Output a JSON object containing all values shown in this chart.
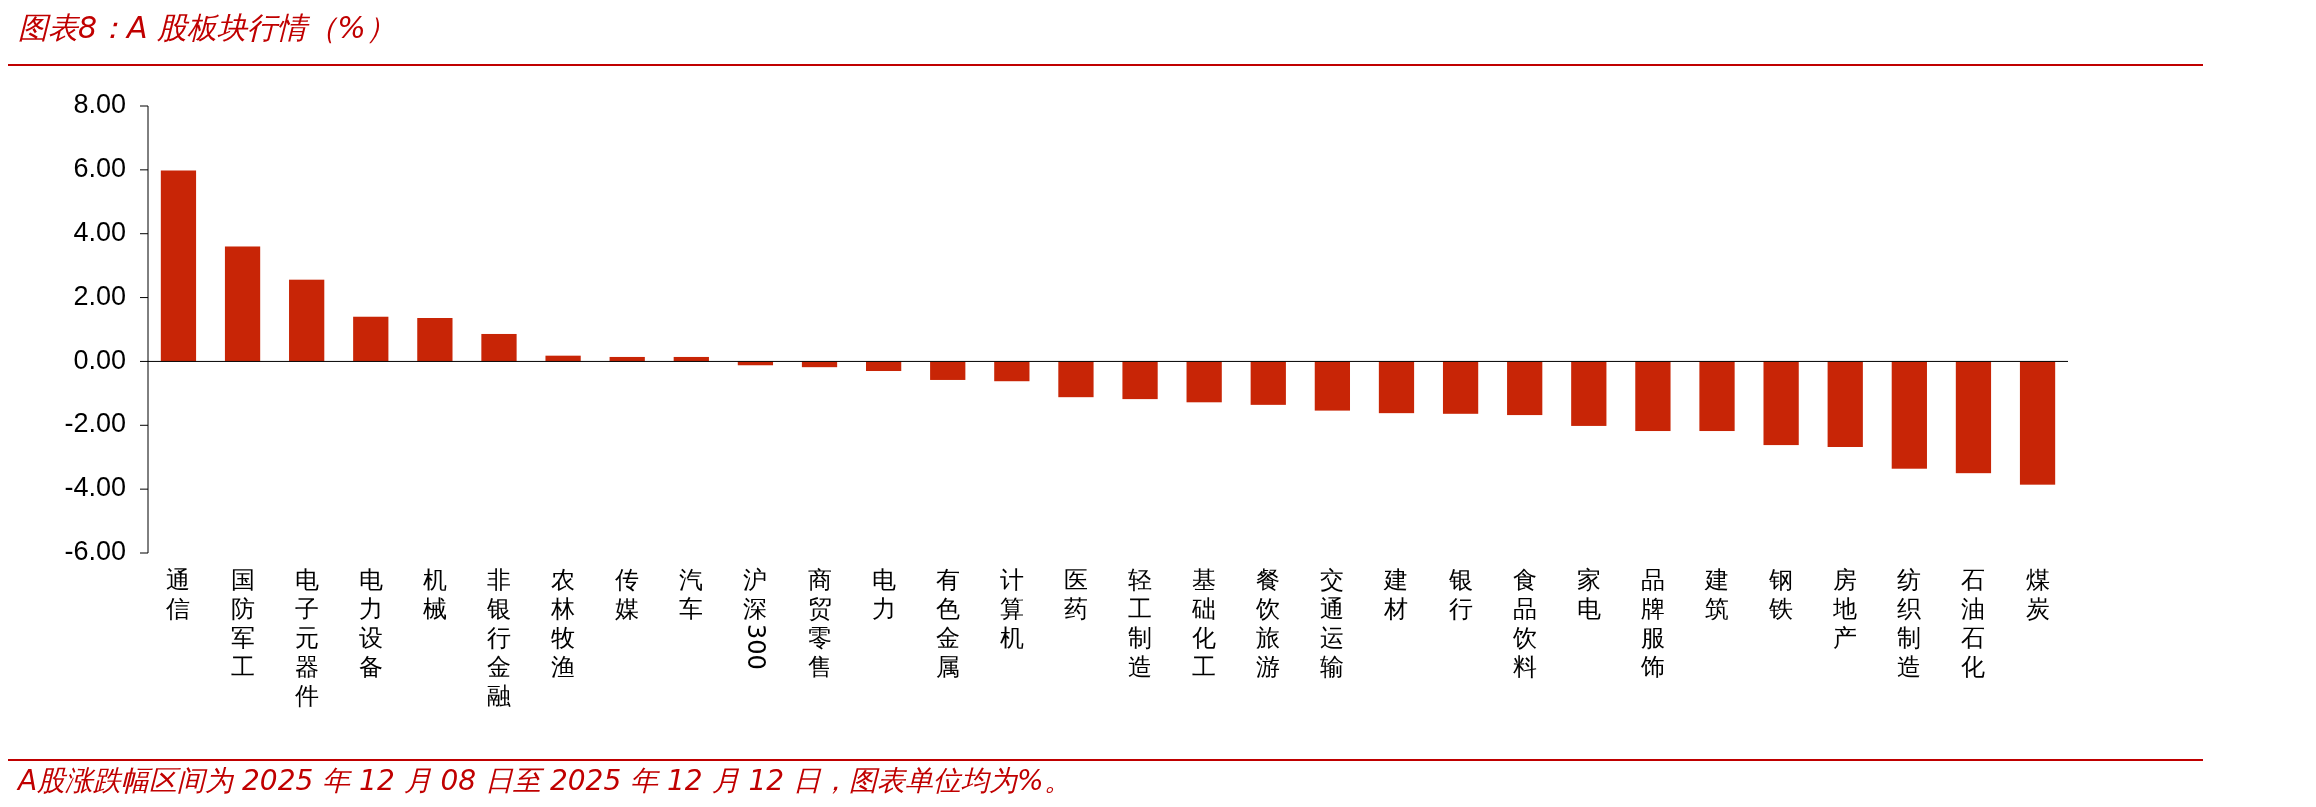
{
  "chart_data": {
    "type": "bar",
    "title": "图表8：A 股板块行情（%）",
    "categories": [
      "通信",
      "国防军工",
      "电子元器件",
      "电力设备",
      "机械",
      "非银行金融",
      "农林牧渔",
      "传媒",
      "汽车",
      "沪深300",
      "商贸零售",
      "电力",
      "有色金属",
      "计算机",
      "医药",
      "轻工制造",
      "基础化工",
      "餐饮旅游",
      "交通运输",
      "建材",
      "银行",
      "食品饮料",
      "家电",
      "品牌服饰",
      "建筑",
      "钢铁",
      "房地产",
      "纺织制造",
      "石油石化",
      "煤炭"
    ],
    "values": [
      5.98,
      3.6,
      2.56,
      1.4,
      1.36,
      0.86,
      0.18,
      0.14,
      0.14,
      -0.12,
      -0.18,
      -0.3,
      -0.58,
      -0.62,
      -1.12,
      -1.18,
      -1.28,
      -1.36,
      -1.54,
      -1.62,
      -1.64,
      -1.68,
      -2.02,
      -2.18,
      -2.18,
      -2.62,
      -2.68,
      -3.36,
      -3.5,
      -3.86
    ],
    "color": "#c82506",
    "ylim": [
      -6,
      8
    ],
    "yticks": [
      {
        "value": -6,
        "label": "-6.00"
      },
      {
        "value": -4,
        "label": "-4.00"
      },
      {
        "value": -2,
        "label": "-2.00"
      },
      {
        "value": 0,
        "label": "0.00"
      },
      {
        "value": 2,
        "label": "2.00"
      },
      {
        "value": 4,
        "label": "4.00"
      },
      {
        "value": 6,
        "label": "6.00"
      },
      {
        "value": 8,
        "label": "8.00"
      }
    ],
    "annotations": [
      "A股涨跌幅区间为 2025 年 12 月 08 日至 2025 年 12 月 12 日，图表单位均为%。"
    ]
  }
}
